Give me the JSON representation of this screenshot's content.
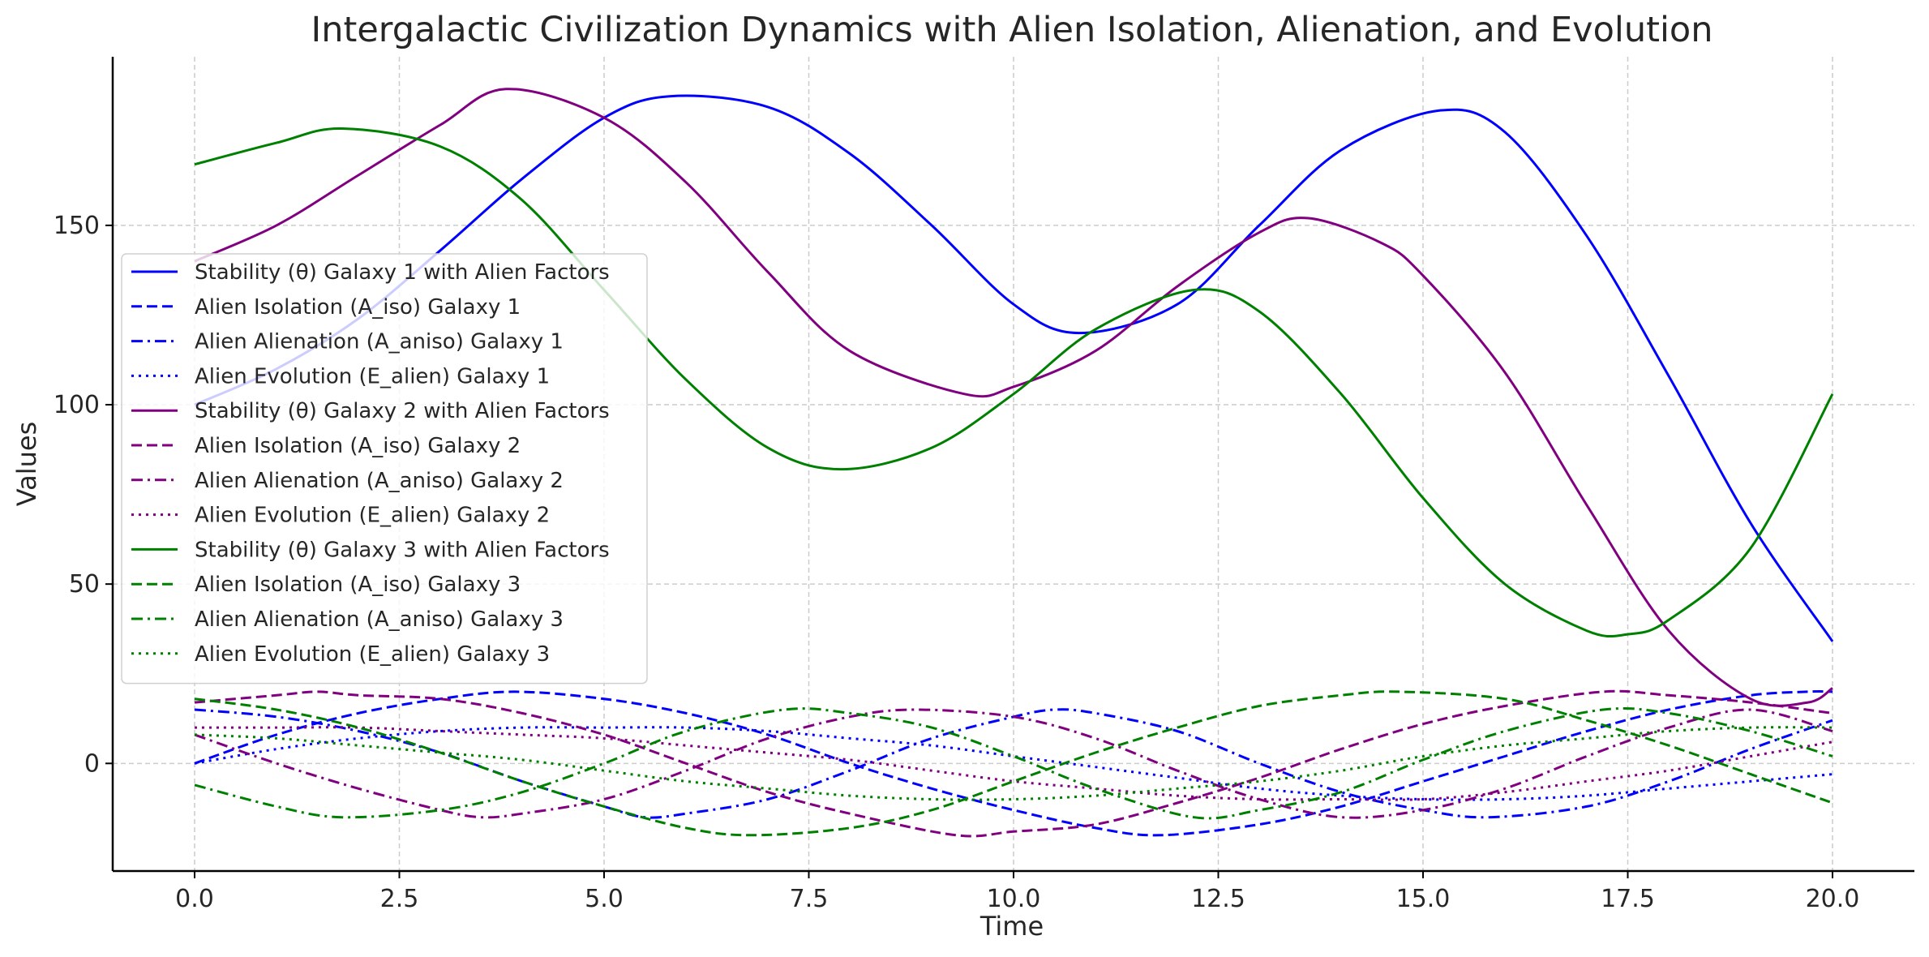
{
  "chart_data": {
    "type": "line",
    "title": "Intergalactic Civilization Dynamics with Alien Isolation, Alienation, and Evolution",
    "xlabel": "Time",
    "ylabel": "Values",
    "xlim": [
      -1.0,
      21.0
    ],
    "ylim": [
      -30,
      197
    ],
    "xticks": [
      0.0,
      2.5,
      5.0,
      7.5,
      10.0,
      12.5,
      15.0,
      17.5,
      20.0
    ],
    "xtick_labels": [
      "0.0",
      "2.5",
      "5.0",
      "7.5",
      "10.0",
      "12.5",
      "15.0",
      "17.5",
      "20.0"
    ],
    "yticks": [
      0,
      50,
      100,
      150
    ],
    "ytick_labels": [
      "0",
      "50",
      "100",
      "150"
    ],
    "grid": true,
    "legend_position": "center-left",
    "colors": {
      "galaxy1": "#0000ff",
      "galaxy2": "#800080",
      "galaxy3": "#008000"
    },
    "series": [
      {
        "name": "Stability (θ) Galaxy 1 with Alien Factors",
        "color": "#0000ff",
        "linestyle": "solid",
        "x": [
          0,
          1,
          2,
          3,
          4,
          5,
          5.8,
          7,
          8,
          9,
          10,
          10.8,
          12,
          13,
          14,
          15.2,
          16,
          17,
          18,
          19,
          20
        ],
        "y": [
          100,
          110,
          124,
          143,
          163,
          180,
          186,
          183,
          170,
          150,
          128,
          120,
          128,
          150,
          171,
          182,
          176,
          147,
          108,
          67,
          34
        ]
      },
      {
        "name": "Alien Isolation (A_iso) Galaxy 1",
        "color": "#0000ff",
        "linestyle": "dashed",
        "x": [
          0,
          1,
          2,
          3,
          3.9,
          5,
          6,
          7,
          8,
          9,
          10,
          11,
          11.8,
          13,
          14,
          15,
          16,
          17,
          18,
          19,
          19.7,
          20
        ],
        "y": [
          0,
          8,
          14,
          18,
          20,
          18,
          14,
          8,
          0,
          -7,
          -13,
          -18,
          -20,
          -17,
          -12,
          -5,
          2,
          9,
          15,
          19,
          20,
          20
        ]
      },
      {
        "name": "Alien Alienation (A_aniso) Galaxy 1",
        "color": "#0000ff",
        "linestyle": "dashdot",
        "x": [
          0,
          1,
          2,
          3,
          4,
          5,
          5.5,
          6,
          7,
          8,
          9,
          10,
          10.5,
          11,
          12,
          13,
          14,
          15,
          15.8,
          17,
          18,
          19,
          20
        ],
        "y": [
          15,
          13,
          9,
          3,
          -5,
          -12,
          -15,
          -14,
          -10,
          -2,
          7,
          13,
          15,
          14,
          9,
          0,
          -8,
          -13,
          -15,
          -12,
          -5,
          4,
          12
        ]
      },
      {
        "name": "Alien Evolution (E_alien) Galaxy 1",
        "color": "#0000ff",
        "linestyle": "dotted",
        "x": [
          0,
          1,
          2,
          3,
          4,
          5,
          6,
          7,
          8,
          9,
          10,
          11,
          12,
          13,
          14,
          15,
          16,
          17,
          18,
          19,
          20
        ],
        "y": [
          0,
          4,
          7,
          9,
          10,
          10,
          10,
          9,
          7,
          5,
          2,
          -1,
          -4,
          -7,
          -9,
          -10,
          -10,
          -9,
          -7,
          -5,
          -3
        ]
      },
      {
        "name": "Stability (θ) Galaxy 2 with Alien Factors",
        "color": "#800080",
        "linestyle": "solid",
        "x": [
          0,
          1,
          2,
          3,
          3.8,
          5,
          6,
          7,
          8,
          9.4,
          10,
          11,
          12,
          13,
          13.6,
          14.5,
          15,
          16,
          17,
          18,
          19,
          19.7,
          20
        ],
        "y": [
          140,
          150,
          164,
          178,
          188,
          180,
          162,
          137,
          115,
          103,
          105,
          115,
          133,
          148,
          152,
          145,
          136,
          109,
          72,
          37,
          18,
          17,
          21
        ]
      },
      {
        "name": "Alien Isolation (A_iso) Galaxy 2",
        "color": "#800080",
        "linestyle": "dashed",
        "x": [
          0,
          1,
          1.5,
          2,
          3,
          4,
          5,
          6,
          7,
          8,
          9.3,
          10,
          11,
          12,
          13,
          14,
          15,
          16,
          17.2,
          18,
          19,
          20
        ],
        "y": [
          17,
          19,
          20,
          19,
          18,
          14,
          8,
          0,
          -8,
          -14,
          -20,
          -19,
          -17,
          -11,
          -4,
          4,
          11,
          16,
          20,
          19,
          17,
          14
        ]
      },
      {
        "name": "Alien Alienation (A_aniso) Galaxy 2",
        "color": "#800080",
        "linestyle": "dashdot",
        "x": [
          0,
          1,
          2,
          3,
          3.5,
          4,
          5,
          6,
          7,
          8,
          8.8,
          10,
          11,
          12,
          13,
          14,
          15,
          16,
          17,
          18,
          19,
          20
        ],
        "y": [
          8,
          0,
          -7,
          -13,
          -15,
          -14,
          -10,
          -2,
          7,
          13,
          15,
          13,
          7,
          -2,
          -10,
          -15,
          -13,
          -7,
          2,
          10,
          15,
          9
        ]
      },
      {
        "name": "Alien Evolution (E_alien) Galaxy 2",
        "color": "#800080",
        "linestyle": "dotted",
        "x": [
          0,
          1,
          2,
          3,
          4,
          5,
          6,
          7,
          8,
          9,
          10,
          11,
          12,
          13,
          14,
          15,
          16,
          17,
          18,
          19,
          20
        ],
        "y": [
          10,
          10,
          10,
          9,
          8,
          7,
          5,
          3,
          1,
          -2,
          -5,
          -7,
          -9,
          -10,
          -10,
          -10,
          -8,
          -5,
          -2,
          2,
          6
        ]
      },
      {
        "name": "Stability (θ) Galaxy 3 with Alien Factors",
        "color": "#008000",
        "linestyle": "solid",
        "x": [
          0,
          1,
          1.8,
          3,
          4,
          5,
          6,
          7,
          7.9,
          9,
          10,
          11,
          12.2,
          13,
          14,
          15,
          16,
          17,
          17.5,
          18,
          19,
          20
        ],
        "y": [
          167,
          173,
          177,
          172,
          157,
          132,
          107,
          88,
          82,
          88,
          103,
          121,
          132,
          126,
          103,
          74,
          50,
          37,
          36,
          40,
          60,
          103
        ]
      },
      {
        "name": "Alien Isolation (A_iso) Galaxy 3",
        "color": "#008000",
        "linestyle": "dashed",
        "x": [
          0,
          1,
          2,
          3,
          4,
          5,
          6,
          6.8,
          8,
          9,
          10,
          11,
          12,
          13,
          14,
          14.7,
          16,
          17,
          18,
          19,
          20
        ],
        "y": [
          18,
          15,
          10,
          3,
          -5,
          -12,
          -18,
          -20,
          -18,
          -13,
          -5,
          3,
          10,
          16,
          19,
          20,
          18,
          12,
          5,
          -3,
          -11
        ]
      },
      {
        "name": "Alien Alienation (A_aniso) Galaxy 3",
        "color": "#008000",
        "linestyle": "dashdot",
        "x": [
          0,
          1,
          1.8,
          3,
          4,
          5,
          6,
          7.2,
          8,
          9,
          10,
          11,
          12.2,
          13,
          14,
          15,
          16,
          17.2,
          18,
          19,
          20
        ],
        "y": [
          -6,
          -12,
          -15,
          -13,
          -8,
          0,
          9,
          15,
          14,
          10,
          2,
          -7,
          -15,
          -13,
          -8,
          1,
          9,
          15,
          14,
          9,
          2
        ]
      },
      {
        "name": "Alien Evolution (E_alien) Galaxy 3",
        "color": "#008000",
        "linestyle": "dotted",
        "x": [
          0,
          1,
          2,
          3,
          4,
          5,
          6,
          7,
          8,
          9,
          10,
          11,
          12,
          13,
          14,
          15,
          16,
          17,
          18,
          19,
          20
        ],
        "y": [
          8,
          7,
          5,
          3,
          1,
          -2,
          -5,
          -7,
          -9,
          -10,
          -10,
          -9,
          -7,
          -5,
          -2,
          2,
          5,
          7,
          9,
          10,
          10
        ]
      }
    ]
  }
}
